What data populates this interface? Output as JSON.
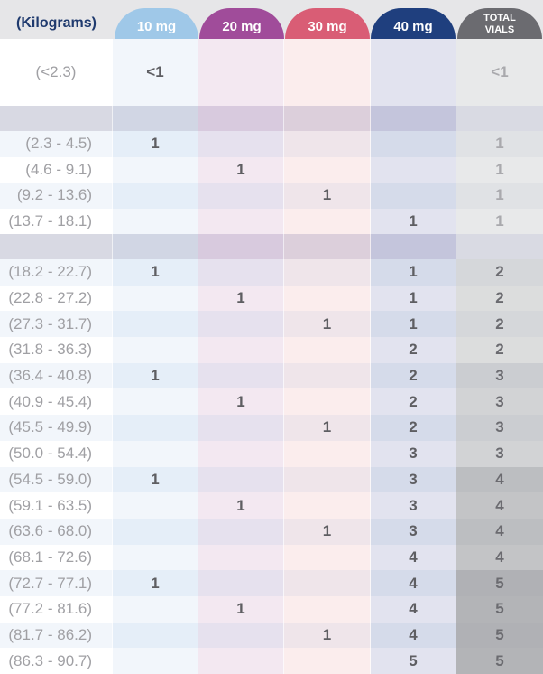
{
  "header": {
    "weight_label": "(Kilograms)",
    "columns": [
      {
        "label": "10 mg",
        "color": "#9fc8e8"
      },
      {
        "label": "20 mg",
        "color": "#a04c9a"
      },
      {
        "label": "30 mg",
        "color": "#d95d75"
      },
      {
        "label": "40 mg",
        "color": "#1f3f7e"
      },
      {
        "label": "TOTAL VIALS",
        "line1": "TOTAL",
        "line2": "VIALS",
        "color": "#6b6b70"
      }
    ]
  },
  "first_row": {
    "weight": "(<2.3)",
    "mg10": "<1",
    "mg20": "",
    "mg30": "",
    "mg40": "",
    "total": "<1"
  },
  "group1": [
    {
      "weight": "(2.3 - 4.5)",
      "mg10": "1",
      "mg20": "",
      "mg30": "",
      "mg40": "",
      "total": "1"
    },
    {
      "weight": "(4.6 - 9.1)",
      "mg10": "",
      "mg20": "1",
      "mg30": "",
      "mg40": "",
      "total": "1"
    },
    {
      "weight": "(9.2 - 13.6)",
      "mg10": "",
      "mg20": "",
      "mg30": "1",
      "mg40": "",
      "total": "1"
    },
    {
      "weight": "(13.7 - 18.1)",
      "mg10": "",
      "mg20": "",
      "mg30": "",
      "mg40": "1",
      "total": "1"
    }
  ],
  "group2": [
    {
      "weight": "(18.2 - 22.7)",
      "mg10": "1",
      "mg20": "",
      "mg30": "",
      "mg40": "1",
      "total": "2"
    },
    {
      "weight": "(22.8 - 27.2)",
      "mg10": "",
      "mg20": "1",
      "mg30": "",
      "mg40": "1",
      "total": "2"
    },
    {
      "weight": "(27.3 - 31.7)",
      "mg10": "",
      "mg20": "",
      "mg30": "1",
      "mg40": "1",
      "total": "2"
    },
    {
      "weight": "(31.8 - 36.3)",
      "mg10": "",
      "mg20": "",
      "mg30": "",
      "mg40": "2",
      "total": "2"
    },
    {
      "weight": "(36.4 - 40.8)",
      "mg10": "1",
      "mg20": "",
      "mg30": "",
      "mg40": "2",
      "total": "3"
    },
    {
      "weight": "(40.9 - 45.4)",
      "mg10": "",
      "mg20": "1",
      "mg30": "",
      "mg40": "2",
      "total": "3"
    },
    {
      "weight": "(45.5 - 49.9)",
      "mg10": "",
      "mg20": "",
      "mg30": "1",
      "mg40": "2",
      "total": "3"
    },
    {
      "weight": "(50.0 - 54.4)",
      "mg10": "",
      "mg20": "",
      "mg30": "",
      "mg40": "3",
      "total": "3"
    },
    {
      "weight": "(54.5 - 59.0)",
      "mg10": "1",
      "mg20": "",
      "mg30": "",
      "mg40": "3",
      "total": "4"
    },
    {
      "weight": "(59.1 - 63.5)",
      "mg10": "",
      "mg20": "1",
      "mg30": "",
      "mg40": "3",
      "total": "4"
    },
    {
      "weight": "(63.6 - 68.0)",
      "mg10": "",
      "mg20": "",
      "mg30": "1",
      "mg40": "3",
      "total": "4"
    },
    {
      "weight": "(68.1 - 72.6)",
      "mg10": "",
      "mg20": "",
      "mg30": "",
      "mg40": "4",
      "total": "4"
    },
    {
      "weight": "(72.7 - 77.1)",
      "mg10": "1",
      "mg20": "",
      "mg30": "",
      "mg40": "4",
      "total": "5"
    },
    {
      "weight": "(77.2 - 81.6)",
      "mg10": "",
      "mg20": "1",
      "mg30": "",
      "mg40": "4",
      "total": "5"
    },
    {
      "weight": "(81.7 - 86.2)",
      "mg10": "",
      "mg20": "",
      "mg30": "1",
      "mg40": "4",
      "total": "5"
    },
    {
      "weight": "(86.3 - 90.7)",
      "mg10": "",
      "mg20": "",
      "mg30": "",
      "mg40": "5",
      "total": "5"
    }
  ]
}
